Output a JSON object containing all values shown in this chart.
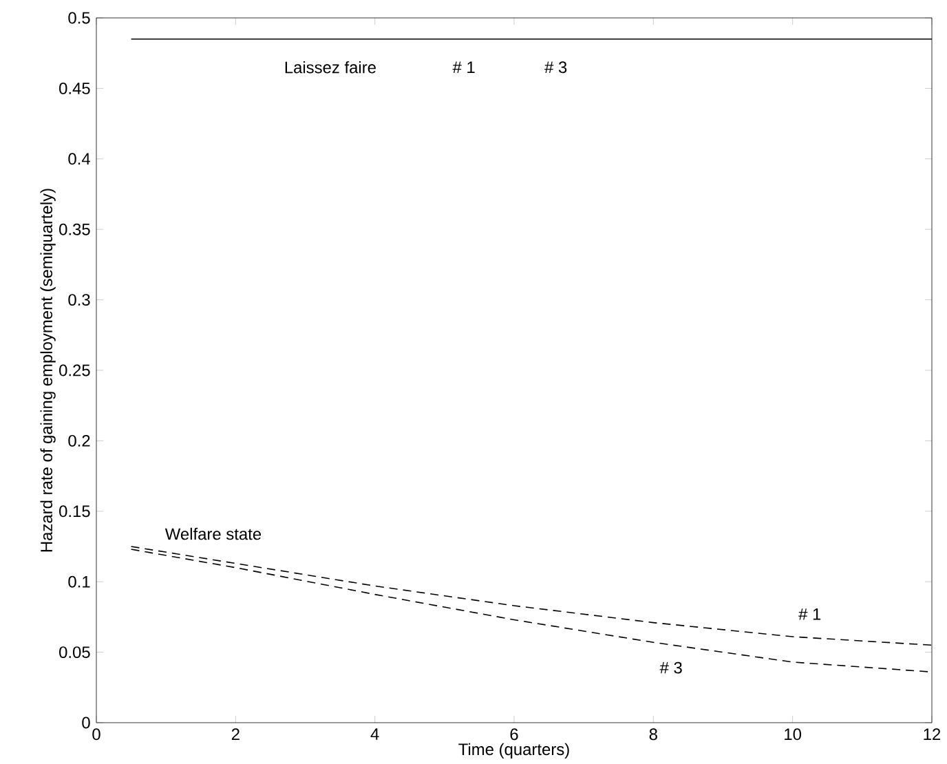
{
  "chart_data": {
    "type": "line",
    "xlabel": "Time (quarters)",
    "ylabel": "Hazard rate of gaining employment (semiquartely)",
    "x": [
      0.5,
      2,
      4,
      6,
      8,
      10,
      12
    ],
    "series": [
      {
        "color": "#000000",
        "line_style": "solid",
        "values": [
          0.485,
          0.485,
          0.485,
          0.485,
          0.485,
          0.485,
          0.485
        ]
      },
      {
        "color": "#000000",
        "line_style": "dashed",
        "values": [
          0.125,
          0.113,
          0.097,
          0.083,
          0.071,
          0.061,
          0.055
        ]
      },
      {
        "color": "#000000",
        "line_style": "dashed",
        "values": [
          0.123,
          0.11,
          0.091,
          0.073,
          0.057,
          0.043,
          0.036
        ]
      }
    ],
    "annotations": [
      "Laissez faire",
      "# 1",
      "# 3",
      "Welfare state",
      "# 1",
      "# 3"
    ],
    "xlim": [
      0,
      12
    ],
    "ylim": [
      0,
      0.5
    ],
    "xticks": [
      0,
      2,
      4,
      6,
      8,
      10,
      12
    ],
    "yticks": [
      0,
      0.05,
      0.1,
      0.15,
      0.2,
      0.25,
      0.3,
      0.35,
      0.4,
      0.45,
      0.5
    ],
    "grid": false,
    "marker": "none"
  }
}
